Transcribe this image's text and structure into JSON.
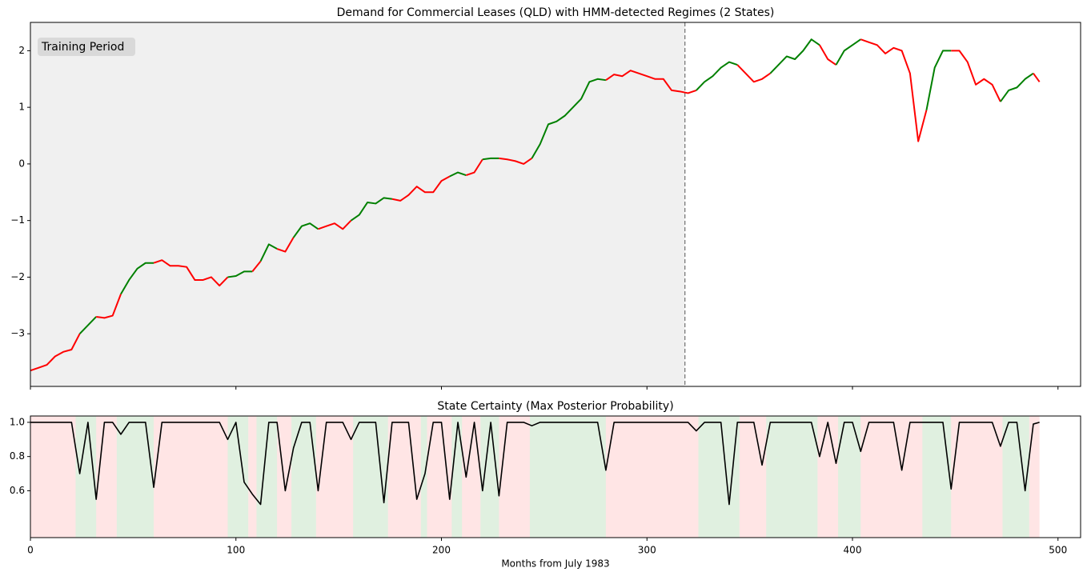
{
  "chart_data": [
    {
      "type": "line",
      "title": "Demand for Commercial Leases (QLD) with HMM-detected Regimes (2 States)",
      "annotation": "Training Period",
      "training_end": 318.5,
      "x": [
        0,
        4,
        8,
        12,
        16,
        20,
        24,
        28,
        32,
        36,
        40,
        44,
        48,
        52,
        56,
        60,
        64,
        68,
        72,
        76,
        80,
        84,
        88,
        92,
        96,
        100,
        104,
        108,
        112,
        116,
        120,
        124,
        128,
        132,
        136,
        140,
        144,
        148,
        152,
        156,
        160,
        164,
        168,
        172,
        176,
        180,
        184,
        188,
        192,
        196,
        200,
        204,
        208,
        212,
        216,
        220,
        224,
        228,
        232,
        236,
        240,
        244,
        248,
        252,
        256,
        260,
        264,
        268,
        272,
        276,
        280,
        284,
        288,
        292,
        296,
        300,
        304,
        308,
        312,
        316,
        320,
        324,
        328,
        332,
        336,
        340,
        344,
        348,
        352,
        356,
        360,
        364,
        368,
        372,
        376,
        380,
        384,
        388,
        392,
        396,
        400,
        404,
        408,
        412,
        416,
        420,
        424,
        428,
        432,
        436,
        440,
        444,
        448,
        452,
        456,
        460,
        464,
        468,
        472,
        476,
        480,
        484,
        488,
        491
      ],
      "values": [
        -3.65,
        -3.6,
        -3.55,
        -3.4,
        -3.32,
        -3.28,
        -3.0,
        -2.85,
        -2.7,
        -2.72,
        -2.68,
        -2.3,
        -2.05,
        -1.85,
        -1.75,
        -1.75,
        -1.7,
        -1.8,
        -1.8,
        -1.82,
        -2.05,
        -2.05,
        -2.0,
        -2.15,
        -2.0,
        -1.98,
        -1.9,
        -1.9,
        -1.72,
        -1.42,
        -1.5,
        -1.55,
        -1.3,
        -1.1,
        -1.05,
        -1.15,
        -1.1,
        -1.05,
        -1.15,
        -1.0,
        -0.9,
        -0.68,
        -0.7,
        -0.6,
        -0.62,
        -0.65,
        -0.55,
        -0.4,
        -0.5,
        -0.5,
        -0.3,
        -0.22,
        -0.15,
        -0.2,
        -0.15,
        0.08,
        0.1,
        0.1,
        0.08,
        0.05,
        0.0,
        0.1,
        0.35,
        0.7,
        0.75,
        0.85,
        1.0,
        1.15,
        1.45,
        1.5,
        1.48,
        1.58,
        1.55,
        1.65,
        1.6,
        1.55,
        1.5,
        1.5,
        1.3,
        1.28,
        1.25,
        1.3,
        1.45,
        1.55,
        1.7,
        1.8,
        1.75,
        1.6,
        1.45,
        1.5,
        1.6,
        1.75,
        1.9,
        1.85,
        2.0,
        2.2,
        2.1,
        1.85,
        1.75,
        2.0,
        2.1,
        2.2,
        2.15,
        2.1,
        1.95,
        2.05,
        2.0,
        1.6,
        0.4,
        0.95,
        1.7,
        2.0,
        2.0,
        2.0,
        1.8,
        1.4,
        1.5,
        1.4,
        1.1,
        1.3,
        1.35,
        1.5,
        1.6,
        1.45
      ],
      "xlim": [
        0,
        511
      ],
      "ylim": [
        -3.93,
        2.5
      ],
      "yticks": [
        {
          "value": -3,
          "label": "−3"
        },
        {
          "value": -2,
          "label": "−2"
        },
        {
          "value": -1,
          "label": "−1"
        },
        0,
        1,
        2
      ]
    },
    {
      "type": "line",
      "title": "State Certainty (Max Posterior Probability)",
      "xlabel": "Months from July 1983",
      "color": "#000000",
      "state_colors": [
        "#ff0000",
        "#008000"
      ],
      "x": [
        0,
        4,
        8,
        12,
        16,
        20,
        24,
        28,
        32,
        36,
        40,
        44,
        48,
        52,
        56,
        60,
        64,
        68,
        72,
        76,
        80,
        84,
        88,
        92,
        96,
        100,
        104,
        108,
        112,
        116,
        120,
        124,
        128,
        132,
        136,
        140,
        144,
        148,
        152,
        156,
        160,
        164,
        168,
        172,
        176,
        180,
        184,
        188,
        192,
        196,
        200,
        204,
        208,
        212,
        216,
        220,
        224,
        228,
        232,
        236,
        240,
        244,
        248,
        252,
        256,
        260,
        264,
        268,
        272,
        276,
        280,
        284,
        288,
        292,
        296,
        300,
        304,
        308,
        312,
        316,
        320,
        324,
        328,
        332,
        336,
        340,
        344,
        348,
        352,
        356,
        360,
        364,
        368,
        372,
        376,
        380,
        384,
        388,
        392,
        396,
        400,
        404,
        408,
        412,
        416,
        420,
        424,
        428,
        432,
        436,
        440,
        444,
        448,
        452,
        456,
        460,
        464,
        468,
        472,
        476,
        480,
        484,
        488,
        491
      ],
      "values": [
        1,
        1,
        1,
        1,
        1,
        1,
        0.7,
        1,
        0.55,
        1,
        1,
        0.93,
        1,
        1,
        1,
        0.62,
        1,
        1,
        1,
        1,
        1,
        1,
        1,
        1,
        0.9,
        1,
        0.65,
        0.58,
        0.52,
        1,
        1,
        0.6,
        0.85,
        1,
        1,
        0.6,
        1,
        1,
        1,
        0.9,
        1,
        1,
        1,
        0.53,
        1,
        1,
        1,
        0.55,
        0.7,
        1,
        1,
        0.55,
        1,
        0.68,
        1,
        0.6,
        1,
        0.57,
        1,
        1,
        1,
        0.98,
        1,
        1,
        1,
        1,
        1,
        1,
        1,
        1,
        0.72,
        1,
        1,
        1,
        1,
        1,
        1,
        1,
        1,
        1,
        1,
        0.95,
        1,
        1,
        1,
        0.52,
        1,
        1,
        1,
        0.75,
        1,
        1,
        1,
        1,
        1,
        1,
        0.8,
        1,
        0.76,
        1,
        1,
        0.83,
        1,
        1,
        1,
        1,
        0.72,
        1,
        1,
        1,
        1,
        1,
        0.61,
        1,
        1,
        1,
        1,
        1,
        0.86,
        1,
        1,
        0.6,
        0.99,
        1
      ],
      "regimes": [
        {
          "start": 0,
          "end": 22,
          "state": 0
        },
        {
          "start": 22,
          "end": 32,
          "state": 1
        },
        {
          "start": 32,
          "end": 42,
          "state": 0
        },
        {
          "start": 42,
          "end": 60,
          "state": 1
        },
        {
          "start": 60,
          "end": 96,
          "state": 0
        },
        {
          "start": 96,
          "end": 106,
          "state": 1
        },
        {
          "start": 106,
          "end": 110,
          "state": 0
        },
        {
          "start": 110,
          "end": 120,
          "state": 1
        },
        {
          "start": 120,
          "end": 127,
          "state": 0
        },
        {
          "start": 127,
          "end": 139,
          "state": 1
        },
        {
          "start": 139,
          "end": 157,
          "state": 0
        },
        {
          "start": 157,
          "end": 174,
          "state": 1
        },
        {
          "start": 174,
          "end": 190,
          "state": 0
        },
        {
          "start": 190,
          "end": 193,
          "state": 1
        },
        {
          "start": 193,
          "end": 205,
          "state": 0
        },
        {
          "start": 205,
          "end": 210,
          "state": 1
        },
        {
          "start": 210,
          "end": 219,
          "state": 0
        },
        {
          "start": 219,
          "end": 228,
          "state": 1
        },
        {
          "start": 228,
          "end": 243,
          "state": 0
        },
        {
          "start": 243,
          "end": 280,
          "state": 1
        },
        {
          "start": 280,
          "end": 325,
          "state": 0
        },
        {
          "start": 325,
          "end": 345,
          "state": 1
        },
        {
          "start": 345,
          "end": 358,
          "state": 0
        },
        {
          "start": 358,
          "end": 383,
          "state": 1
        },
        {
          "start": 383,
          "end": 393,
          "state": 0
        },
        {
          "start": 393,
          "end": 404,
          "state": 1
        },
        {
          "start": 404,
          "end": 434,
          "state": 0
        },
        {
          "start": 434,
          "end": 448,
          "state": 1
        },
        {
          "start": 448,
          "end": 473,
          "state": 0
        },
        {
          "start": 473,
          "end": 486,
          "state": 1
        },
        {
          "start": 486,
          "end": 491,
          "state": 0
        }
      ],
      "xlim": [
        0,
        511
      ],
      "ylim": [
        0.326,
        1.037
      ],
      "xticks": [
        0,
        100,
        200,
        300,
        400,
        500
      ],
      "yticks": [
        0.6,
        0.8,
        {
          "value": 1,
          "label": "1.0"
        }
      ]
    }
  ]
}
